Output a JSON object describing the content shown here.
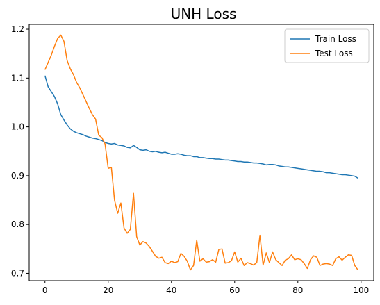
{
  "chart_data": {
    "type": "line",
    "title": "UNH Loss",
    "xlabel": "",
    "ylabel": "",
    "xlim": [
      -5,
      104
    ],
    "ylim": [
      0.685,
      1.21
    ],
    "xticks": [
      0,
      20,
      40,
      60,
      80,
      100
    ],
    "yticks": [
      0.7,
      0.8,
      0.9,
      1.0,
      1.1,
      1.2
    ],
    "xtick_labels": [
      "0",
      "20",
      "40",
      "60",
      "80",
      "100"
    ],
    "ytick_labels": [
      "0.7",
      "0.8",
      "0.9",
      "1.0",
      "1.1",
      "1.2"
    ],
    "grid": false,
    "legend_position": "top-right",
    "x": [
      0,
      1,
      2,
      3,
      4,
      5,
      6,
      7,
      8,
      9,
      10,
      11,
      12,
      13,
      14,
      15,
      16,
      17,
      18,
      19,
      20,
      21,
      22,
      23,
      24,
      25,
      26,
      27,
      28,
      29,
      30,
      31,
      32,
      33,
      34,
      35,
      36,
      37,
      38,
      39,
      40,
      41,
      42,
      43,
      44,
      45,
      46,
      47,
      48,
      49,
      50,
      51,
      52,
      53,
      54,
      55,
      56,
      57,
      58,
      59,
      60,
      61,
      62,
      63,
      64,
      65,
      66,
      67,
      68,
      69,
      70,
      71,
      72,
      73,
      74,
      75,
      76,
      77,
      78,
      79,
      80,
      81,
      82,
      83,
      84,
      85,
      86,
      87,
      88,
      89,
      90,
      91,
      92,
      93,
      94,
      95,
      96,
      97,
      98,
      99
    ],
    "series": [
      {
        "name": "Train Loss",
        "color": "#1f77b4",
        "values": [
          1.105,
          1.082,
          1.072,
          1.062,
          1.047,
          1.025,
          1.014,
          1.004,
          0.996,
          0.991,
          0.988,
          0.986,
          0.984,
          0.981,
          0.979,
          0.977,
          0.976,
          0.974,
          0.972,
          0.968,
          0.966,
          0.965,
          0.966,
          0.963,
          0.962,
          0.961,
          0.958,
          0.957,
          0.962,
          0.958,
          0.953,
          0.952,
          0.953,
          0.95,
          0.949,
          0.95,
          0.948,
          0.947,
          0.948,
          0.946,
          0.944,
          0.944,
          0.945,
          0.944,
          0.942,
          0.941,
          0.941,
          0.939,
          0.939,
          0.937,
          0.937,
          0.936,
          0.935,
          0.935,
          0.934,
          0.934,
          0.933,
          0.932,
          0.932,
          0.931,
          0.93,
          0.929,
          0.929,
          0.928,
          0.928,
          0.927,
          0.926,
          0.926,
          0.925,
          0.924,
          0.922,
          0.923,
          0.923,
          0.922,
          0.92,
          0.919,
          0.918,
          0.918,
          0.917,
          0.916,
          0.915,
          0.914,
          0.913,
          0.912,
          0.911,
          0.91,
          0.909,
          0.909,
          0.908,
          0.906,
          0.906,
          0.905,
          0.904,
          0.903,
          0.902,
          0.902,
          0.901,
          0.9,
          0.899,
          0.895
        ]
      },
      {
        "name": "Test Loss",
        "color": "#ff7f0e",
        "values": [
          1.117,
          1.132,
          1.147,
          1.165,
          1.181,
          1.188,
          1.175,
          1.136,
          1.119,
          1.107,
          1.091,
          1.08,
          1.066,
          1.052,
          1.038,
          1.025,
          1.016,
          0.983,
          0.978,
          0.965,
          0.915,
          0.917,
          0.85,
          0.823,
          0.844,
          0.793,
          0.782,
          0.79,
          0.864,
          0.775,
          0.758,
          0.765,
          0.762,
          0.755,
          0.745,
          0.735,
          0.731,
          0.733,
          0.722,
          0.72,
          0.725,
          0.722,
          0.724,
          0.741,
          0.735,
          0.725,
          0.707,
          0.716,
          0.768,
          0.725,
          0.73,
          0.723,
          0.724,
          0.728,
          0.723,
          0.749,
          0.75,
          0.721,
          0.722,
          0.726,
          0.744,
          0.723,
          0.731,
          0.716,
          0.722,
          0.72,
          0.717,
          0.722,
          0.778,
          0.717,
          0.742,
          0.722,
          0.744,
          0.728,
          0.722,
          0.716,
          0.727,
          0.73,
          0.738,
          0.728,
          0.73,
          0.728,
          0.72,
          0.71,
          0.728,
          0.736,
          0.733,
          0.716,
          0.719,
          0.72,
          0.719,
          0.716,
          0.73,
          0.734,
          0.727,
          0.733,
          0.738,
          0.737,
          0.716,
          0.707
        ]
      }
    ]
  }
}
